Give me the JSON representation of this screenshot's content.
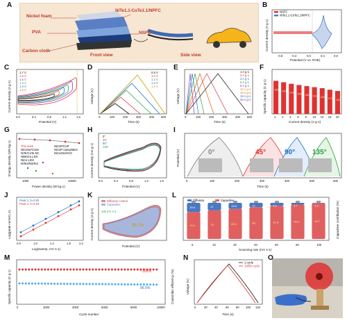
{
  "panels": {
    "A": {
      "label": "A",
      "text": {
        "nickel_foam": "Nickel foam",
        "pva": "PVA",
        "carbon": "Carbon cloth",
        "cathode": "NiTe1.1-CoTe1.1/NPFC",
        "nsfc": "NSFC",
        "front": "Front view",
        "side": "Side view"
      }
    },
    "B": {
      "label": "B",
      "legend": [
        "NSFC",
        "NiTe1.1-CoTe1.1/NPFC"
      ],
      "xlabel": "Potential (V vs. RHE)",
      "ylabel": "Current density (A g-1)",
      "xticks": [
        "-0.8",
        "-0.4",
        "0.0",
        "0.4",
        "0.8"
      ]
    },
    "C": {
      "label": "C",
      "legend": [
        "1.7 V",
        "1.6 V",
        "1.5 V",
        "1.4 V",
        "1.3 V",
        "1.2 V",
        "1.1 V",
        "1.0 V"
      ],
      "xlabel": "Potential (V)",
      "ylabel": "Current density (A g-1)",
      "xticks": [
        "0.0",
        "0.4",
        "0.8",
        "1.2",
        "1.6"
      ]
    },
    "D": {
      "label": "D",
      "legend": [
        "0.8 V",
        "1.0 V",
        "1.2 V",
        "1.4 V",
        "1.6 V"
      ],
      "xlabel": "Time (s)",
      "ylabel": "Voltage (V)",
      "xticks": [
        "0",
        "100",
        "200",
        "300",
        "400",
        "500"
      ]
    },
    "E": {
      "label": "E",
      "legend": [
        "1 A g-1",
        "2 A g-1",
        "4 A g-1",
        "6 A g-1",
        "8 A g-1",
        "10 A g-1",
        "12 A g-1",
        "16 A g-1",
        "20 A g-1"
      ],
      "xlabel": "Time (s)",
      "ylabel": "Voltage (V)",
      "xticks": [
        "0",
        "100",
        "200",
        "300",
        "400",
        "500"
      ]
    },
    "F": {
      "label": "F",
      "xlabel": "Current density (A g-1)",
      "ylabel": "Specific capacity (C g-1)",
      "categories": [
        "1",
        "2",
        "4",
        "6",
        "8",
        "10",
        "12",
        "16",
        "20"
      ],
      "bar_text": [
        "235",
        "225",
        "214",
        "205",
        "198",
        "190",
        "183",
        "172",
        "163"
      ]
    },
    "G": {
      "label": "G",
      "xlabel": "Power density (W kg-1)",
      "ylabel": "Energy density (Wh kg-1)",
      "xticks": [
        "1000",
        "10000"
      ],
      "legend": [
        "This work",
        "NiCoSe/CoSe",
        "NiTe/CoTe NC",
        "NiMnCo LDH",
        "NiCo LDH",
        "NiTe2/Ni3Te2",
        "NiCoP/CoP",
        "NiCoP nanoplates",
        "NiCo2S4/rGO"
      ]
    },
    "H": {
      "label": "H",
      "legend": [
        "0°",
        "45°",
        "90°",
        "135°"
      ],
      "xlabel": "Potential (V)",
      "ylabel": "Current density (mA g-1)",
      "xticks": [
        "0.0",
        "0.4",
        "0.8",
        "1.2",
        "1.6"
      ]
    },
    "I": {
      "label": "I",
      "angles": [
        "0°",
        "45°",
        "90°",
        "135°"
      ],
      "xlabel": "Time (s)",
      "ylabel": "Potential (V)",
      "xticks": [
        "0",
        "100",
        "200",
        "300",
        "400",
        "500",
        "600"
      ]
    },
    "J": {
      "label": "J",
      "legend": [
        "Peak 1, b=0.80",
        "Peak 2, b=0.83"
      ],
      "xlabel": "Log(sweep, mV s-1)",
      "ylabel": "Log(peak current, A)",
      "xticks": [
        "0.6",
        "0.8",
        "1.0",
        "1.2",
        "1.4",
        "1.6",
        "1.8",
        "2.0",
        "2.2"
      ]
    },
    "K": {
      "label": "K",
      "legend": [
        "Diffusion control",
        "Capacitive"
      ],
      "scan": "100 mV s-1",
      "pct": "98.7%",
      "xlabel": "Potential (V)",
      "ylabel": "Current density (A g-1)"
    },
    "L": {
      "label": "L",
      "legend": [
        "Diffusion",
        "Capacitive"
      ],
      "xlabel": "Scanning rate (mV s-1)",
      "ylabel": "Capacitive contribution (%)",
      "categories": [
        "5",
        "10",
        "20",
        "40",
        "60",
        "80",
        "100"
      ],
      "top": [
        "25.8",
        "21",
        "16.8",
        "12",
        "8.2",
        "4.7",
        "1.3"
      ],
      "bottom": [
        "74.2",
        "79",
        "83.2",
        "88",
        "91.8",
        "95.3",
        "98.7"
      ]
    },
    "M": {
      "label": "M",
      "xlabel": "Cycle number",
      "ylabel": "Specific capacity (C g-1)",
      "ylabel2": "Coulombic efficiency (%)",
      "xticks": [
        "0",
        "2000",
        "4000",
        "6000",
        "8000",
        "10000"
      ],
      "ann1": "~100%",
      "ann2": "96.5%"
    },
    "N": {
      "label": "N",
      "legend": [
        "1 cycle",
        "10000 cycle"
      ],
      "xlabel": "Time (s)",
      "ylabel": "Voltage (V)",
      "xticks": [
        "0",
        "20",
        "40",
        "60",
        "80",
        "100",
        "120"
      ]
    },
    "O": {
      "label": "O"
    }
  },
  "chart_data": [
    {
      "type": "bar",
      "panel": "F",
      "categories": [
        "1",
        "2",
        "4",
        "6",
        "8",
        "10",
        "12",
        "16",
        "20"
      ],
      "values": [
        235,
        225,
        214,
        205,
        198,
        190,
        183,
        172,
        163
      ],
      "ylim": [
        0,
        300
      ]
    },
    {
      "type": "bar",
      "panel": "L",
      "categories": [
        "5",
        "10",
        "20",
        "40",
        "60",
        "80",
        "100"
      ],
      "series": [
        {
          "name": "Diffusion",
          "values": [
            25.8,
            21,
            16.8,
            12,
            8.2,
            4.7,
            1.3
          ]
        },
        {
          "name": "Capacitive",
          "values": [
            74.2,
            79,
            83.2,
            88,
            91.8,
            95.3,
            98.7
          ]
        }
      ],
      "ylim": [
        0,
        100
      ]
    },
    {
      "type": "scatter",
      "panel": "J",
      "series": [
        {
          "name": "Peak 1, b=0.80",
          "x": [
            0.7,
            1.0,
            1.3,
            1.6,
            1.9,
            2.1
          ],
          "y": [
            -2.6,
            -2.35,
            -2.1,
            -1.85,
            -1.6,
            -1.45
          ]
        },
        {
          "name": "Peak 2, b=0.83",
          "x": [
            0.7,
            1.0,
            1.3,
            1.6,
            1.9,
            2.1
          ],
          "y": [
            -2.75,
            -2.5,
            -2.25,
            -2.0,
            -1.75,
            -1.6
          ]
        }
      ]
    }
  ]
}
